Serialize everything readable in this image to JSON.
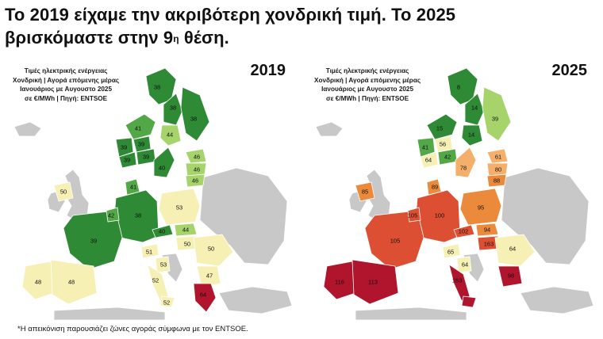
{
  "headline": {
    "line1": "Το 2019 είχαμε την ακριβότερη χονδρική τιμή. Το 2025",
    "line2_prefix": "βρισκόμαστε στην 9",
    "line2_sup": "η",
    "line2_suffix": " θέση."
  },
  "caption_lines": [
    "Τιμές ηλεκτρικής ενέργειας",
    "Χονδρική | Αγορά επόμενης μέρας",
    "Ιανουάριος με Αυγουστο 2025",
    "σε €/MWh | Πηγή: ENTSOE"
  ],
  "footnote": "*Η απεικόνιση παρουσιάζει ζώνες αγοράς σύμφωνα με τον ENTSOE.",
  "colors": {
    "dark_green": "#2e8a35",
    "mid_green": "#52a846",
    "light_green": "#a6d46b",
    "pale_yellow": "#f6f0b4",
    "light_orange": "#f4b06b",
    "orange": "#ec8a3c",
    "red": "#dc4f32",
    "dark_red": "#b0152d",
    "no_data": "#c8c8c8"
  },
  "maps": [
    {
      "year": "2019",
      "zones": [
        {
          "label": "38",
          "color": "#2e8a35"
        },
        {
          "label": "38",
          "color": "#2e8a35"
        },
        {
          "label": "38",
          "color": "#2e8a35"
        },
        {
          "label": "44",
          "color": "#a6d46b"
        },
        {
          "label": "41",
          "color": "#52a846"
        },
        {
          "label": "39",
          "color": "#2e8a35"
        },
        {
          "label": "39",
          "color": "#2e8a35"
        },
        {
          "label": "39",
          "color": "#2e8a35"
        },
        {
          "label": "39",
          "color": "#2e8a35"
        },
        {
          "label": "40",
          "color": "#2e8a35"
        },
        {
          "label": "46",
          "color": "#a6d46b"
        },
        {
          "label": "46",
          "color": "#a6d46b"
        },
        {
          "label": "46",
          "color": "#a6d46b"
        },
        {
          "label": "50",
          "color": "#f6f0b4"
        },
        {
          "label": "41",
          "color": "#52a846"
        },
        {
          "label": "38",
          "color": "#2e8a35"
        },
        {
          "label": "53",
          "color": "#f6f0b4"
        },
        {
          "label": "40",
          "color": "#2e8a35"
        },
        {
          "label": "44",
          "color": "#a6d46b"
        },
        {
          "label": "39",
          "color": "#2e8a35"
        },
        {
          "label": "42",
          "color": "#52a846"
        },
        {
          "label": "50",
          "color": "#f6f0b4"
        },
        {
          "label": "50",
          "color": "#f6f0b4"
        },
        {
          "label": "51",
          "color": "#f6f0b4"
        },
        {
          "label": "53",
          "color": "#f6f0b4"
        },
        {
          "label": "47",
          "color": "#f6f0b4"
        },
        {
          "label": "48",
          "color": "#f6f0b4"
        },
        {
          "label": "48",
          "color": "#f6f0b4"
        },
        {
          "label": "52",
          "color": "#f6f0b4"
        },
        {
          "label": "52",
          "color": "#f6f0b4"
        },
        {
          "label": "64",
          "color": "#b0152d"
        }
      ]
    },
    {
      "year": "2025",
      "zones": [
        {
          "label": "8",
          "color": "#2e8a35"
        },
        {
          "label": "14",
          "color": "#2e8a35"
        },
        {
          "label": "39",
          "color": "#a6d46b"
        },
        {
          "label": "14",
          "color": "#2e8a35"
        },
        {
          "label": "15",
          "color": "#2e8a35"
        },
        {
          "label": "41",
          "color": "#52a846"
        },
        {
          "label": "56",
          "color": "#f6f0b4"
        },
        {
          "label": "64",
          "color": "#f6f0b4"
        },
        {
          "label": "42",
          "color": "#52a846"
        },
        {
          "label": "78",
          "color": "#f4b06b"
        },
        {
          "label": "61",
          "color": "#f4b06b"
        },
        {
          "label": "80",
          "color": "#f4b06b"
        },
        {
          "label": "88",
          "color": "#ec8a3c"
        },
        {
          "label": "85",
          "color": "#ec8a3c"
        },
        {
          "label": "89",
          "color": "#ec8a3c"
        },
        {
          "label": "100",
          "color": "#dc4f32"
        },
        {
          "label": "95",
          "color": "#ec8a3c"
        },
        {
          "label": "102",
          "color": "#dc4f32"
        },
        {
          "label": "94",
          "color": "#ec8a3c"
        },
        {
          "label": "105",
          "color": "#dc4f32"
        },
        {
          "label": "105",
          "color": "#dc4f32"
        },
        {
          "label": "163",
          "color": "#dc4f32"
        },
        {
          "label": "64",
          "color": "#f6f0b4"
        },
        {
          "label": "65",
          "color": "#f6f0b4"
        },
        {
          "label": "64",
          "color": "#f6f0b4"
        },
        {
          "label": "98",
          "color": "#b0152d"
        },
        {
          "label": "116",
          "color": "#b0152d"
        },
        {
          "label": "113",
          "color": "#b0152d"
        },
        {
          "label": "163",
          "color": "#b0152d"
        },
        {
          "label": "",
          "color": "#b0152d"
        }
      ]
    }
  ]
}
